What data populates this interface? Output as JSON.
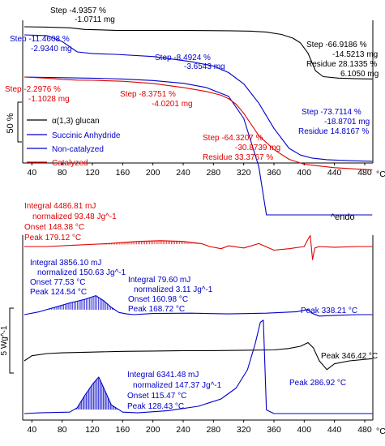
{
  "chart_data": [
    {
      "type": "line",
      "panel": "TGA",
      "x_unit": "°C",
      "x_ticks": [
        40,
        80,
        120,
        160,
        200,
        240,
        280,
        320,
        360,
        400,
        440,
        480
      ],
      "xlim": [
        30,
        495
      ],
      "scale_label": "50 %",
      "legend": [
        {
          "name": "α(1,3) glucan",
          "color": "#000000"
        },
        {
          "name": "Succinic Anhydride",
          "color": "#0000c8"
        },
        {
          "name": "Non-catalyzed",
          "color": "#0000c8"
        },
        {
          "name": "Catalyzed",
          "color": "#e00000"
        }
      ],
      "series": [
        {
          "name": "α(1,3) glucan",
          "color": "#000000",
          "x": [
            30,
            60,
            90,
            110,
            150,
            200,
            250,
            300,
            330,
            350,
            370,
            385,
            395,
            405,
            415,
            425,
            445,
            470,
            490
          ],
          "y": [
            100,
            99.6,
            98.6,
            96.3,
            95.1,
            95.0,
            94.9,
            94.6,
            94.0,
            92.7,
            89.5,
            84.5,
            78.0,
            64.0,
            40.0,
            32.0,
            30.0,
            29.2,
            28.8
          ]
        },
        {
          "name": "Succinic Anhydride",
          "color": "#0000c8",
          "x": [
            30,
            60,
            80,
            100,
            120,
            150,
            200,
            250,
            280,
            300,
            320,
            340,
            360,
            380,
            395,
            410,
            430,
            460,
            490
          ],
          "y": [
            100,
            99.5,
            95.5,
            88.5,
            87.4,
            86.9,
            85.4,
            82.0,
            79.0,
            74.6,
            67.0,
            54.0,
            37.0,
            23.5,
            19.0,
            17.0,
            15.9,
            15.2,
            14.8
          ]
        },
        {
          "name": "Non-catalyzed",
          "color": "#0000c8",
          "x": [
            30,
            80,
            120,
            160,
            200,
            240,
            270,
            300,
            320,
            340,
            350,
            360,
            400,
            440,
            490
          ],
          "y": [
            100,
            99.5,
            99.2,
            98.6,
            97.5,
            95.5,
            92.5,
            86.0,
            70.0,
            35.0,
            0,
            0,
            0,
            0,
            0
          ]
        },
        {
          "name": "Catalyzed",
          "color": "#e00000",
          "x": [
            30,
            60,
            80,
            100,
            120,
            160,
            200,
            240,
            270,
            290,
            300,
            310,
            320,
            330,
            340,
            360,
            380,
            400,
            440,
            490
          ],
          "y": [
            100,
            99.2,
            98.3,
            97.8,
            97.7,
            97.0,
            95.4,
            92.5,
            89.7,
            87.0,
            84.5,
            80.5,
            74.0,
            66.0,
            58.0,
            48.0,
            41.0,
            37.5,
            35.0,
            33.4
          ]
        }
      ],
      "annotations": [
        {
          "color": "#000000",
          "lines": [
            "Step -4.9357 %",
            "-1.0711 mg"
          ]
        },
        {
          "color": "#000000",
          "lines": [
            "Step -66.9186 %",
            "-14.5213 mg",
            "Residue 28.1335 %",
            "6.1050 mg"
          ]
        },
        {
          "color": "#0000c8",
          "lines": [
            "Step -11.4608 %",
            "-2.9340 mg"
          ]
        },
        {
          "color": "#0000c8",
          "lines": [
            "Step -8.4924 %",
            "-3.6543 mg"
          ]
        },
        {
          "color": "#0000c8",
          "lines": [
            "Step -73.7114 %",
            "-18.8701 mg",
            "Residue 14.8167 %"
          ]
        },
        {
          "color": "#e00000",
          "lines": [
            "Step -2.2976 %",
            "-1.1028 mg"
          ]
        },
        {
          "color": "#e00000",
          "lines": [
            "Step -8.3751 %",
            "-4.0201 mg"
          ]
        },
        {
          "color": "#e00000",
          "lines": [
            "Step -64.3207 %",
            "-30.8739 mg",
            "Residue 33.3767 %"
          ]
        }
      ]
    },
    {
      "type": "line",
      "panel": "DSC",
      "x_unit": "°C",
      "x_ticks": [
        40,
        80,
        120,
        160,
        200,
        240,
        280,
        320,
        360,
        400,
        440,
        480
      ],
      "xlim": [
        30,
        495
      ],
      "scale_label": "5 Wg^-1",
      "endo_label": "^endo",
      "series": [
        {
          "name": "Catalyzed",
          "color": "#e00000",
          "x": [
            30,
            60,
            100,
            140,
            180,
            210,
            240,
            264,
            275,
            290,
            300,
            320,
            340,
            360,
            380,
            400,
            405,
            408,
            411,
            414,
            420,
            440,
            470,
            490
          ],
          "y": [
            0,
            0,
            0.2,
            0.4,
            0.7,
            0.8,
            0.7,
            0.4,
            0,
            -0.3,
            0.1,
            -0.2,
            0.4,
            -0.5,
            -0.3,
            0,
            1.0,
            1.5,
            -1.8,
            -0.2,
            0,
            -0.1,
            0,
            0
          ]
        },
        {
          "name": "Succinic Anhydride",
          "color": "#0000c8",
          "x": [
            30,
            50,
            70,
            90,
            110,
            124.5,
            135,
            145,
            155,
            165,
            175,
            200,
            250,
            300,
            350,
            390,
            405,
            410,
            420,
            440,
            470,
            490
          ],
          "y": [
            0,
            0.4,
            1.0,
            1.6,
            2.1,
            2.6,
            1.9,
            1.0,
            0.3,
            0.1,
            0,
            0.15,
            0.2,
            0.1,
            0.2,
            0.4,
            0.7,
            0.2,
            -0.2,
            -0.1,
            0,
            0
          ]
        },
        {
          "name": "α(1,3) glucan",
          "color": "#000000",
          "x": [
            30,
            40,
            60,
            80,
            120,
            160,
            200,
            240,
            280,
            320,
            360,
            380,
            395,
            405,
            412,
            420,
            430,
            440,
            460,
            490
          ],
          "y": [
            0,
            0.7,
            1.0,
            1.1,
            1.2,
            1.3,
            1.35,
            1.4,
            1.4,
            1.45,
            1.5,
            1.7,
            2.0,
            2.5,
            1.8,
            0,
            -1.2,
            -0.4,
            0,
            0.3
          ]
        },
        {
          "name": "Non-catalyzed",
          "color": "#0000c8",
          "x": [
            30,
            50,
            90,
            100,
            110,
            120,
            128.4,
            135,
            145,
            160,
            180,
            220,
            260,
            290,
            310,
            325,
            335,
            342,
            346,
            350,
            360,
            390,
            430,
            470,
            490
          ],
          "y": [
            0,
            0.1,
            0.2,
            0.8,
            2.5,
            4.0,
            5.0,
            3.5,
            1.2,
            0.2,
            0.1,
            0.4,
            1.0,
            2.0,
            3.5,
            6.0,
            9.5,
            12.5,
            12.8,
            0.5,
            0,
            0,
            0,
            0,
            0
          ]
        }
      ],
      "annotations": [
        {
          "color": "#e00000",
          "lines": [
            "Integral 4486.81 mJ",
            "normalized 93.48 Jg^-1",
            "Onset 148.38 °C",
            "Peak 179.12 °C"
          ]
        },
        {
          "color": "#0000c8",
          "lines": [
            "Integral 3856.10 mJ",
            "normalized 150.63 Jg^-1",
            "Onset 77.53 °C",
            "Peak 124.54 °C"
          ]
        },
        {
          "color": "#0000c8",
          "lines": [
            "Integral 79.60 mJ",
            "normalized 3.11 Jg^-1",
            "Onset 160.98 °C",
            "Peak 168.72 °C"
          ]
        },
        {
          "color": "#0000c8",
          "lines": [
            "Peak 338.21 °C"
          ]
        },
        {
          "color": "#000000",
          "lines": [
            "Peak 346.42 °C"
          ]
        },
        {
          "color": "#0000c8",
          "lines": [
            "Peak 286.92 °C"
          ]
        },
        {
          "color": "#0000c8",
          "lines": [
            "Integral 6341.48 mJ",
            "normalized 147.37 Jg^-1",
            "Onset 115.47 °C",
            "Peak 128.43 °C"
          ]
        }
      ]
    }
  ]
}
